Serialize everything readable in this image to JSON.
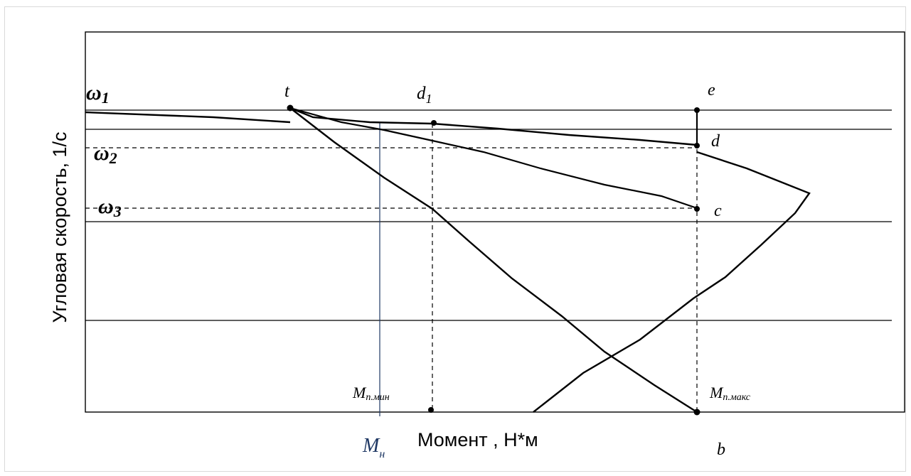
{
  "axes": {
    "y_label": "Угловая скорость, 1/с",
    "x_label": "Момент , Н*м"
  },
  "omega_labels": {
    "omega1": "ω",
    "omega1_sub": "1",
    "omega2": "ω",
    "omega2_sub": "2",
    "omega3": "ω",
    "omega3_sub": "3"
  },
  "point_labels": {
    "t": "t",
    "d1": "d",
    "d1_sub": "1",
    "e": "e",
    "d": "d",
    "c": "c",
    "b": "b"
  },
  "moment_labels": {
    "m_min": "M",
    "m_min_sub": "п.мин",
    "m_max": "M",
    "m_max_sub": "п.макс",
    "m_nom": "M",
    "m_nom_sub": "н"
  },
  "colors": {
    "line": "#000000",
    "nominal_line": "#1f3864",
    "nominal_label": "#1f3864"
  }
}
